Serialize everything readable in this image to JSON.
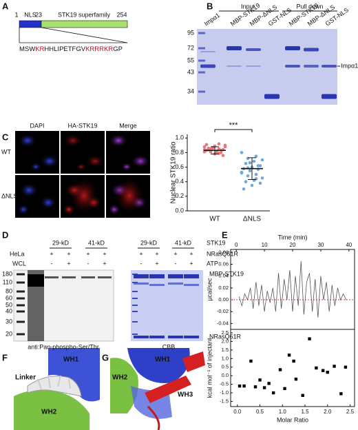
{
  "a": {
    "label": "A",
    "nls": "NLS",
    "domain": "STK19 superfamily",
    "positions": [
      1,
      23,
      254
    ],
    "sequence": [
      {
        "text": "MSW",
        "highlight": false
      },
      {
        "text": "KR",
        "highlight": true
      },
      {
        "text": "HHLIPETFGV",
        "highlight": false
      },
      {
        "text": "KRRRKR",
        "highlight": true
      },
      {
        "text": "GP",
        "highlight": false
      }
    ]
  },
  "b": {
    "label": "B",
    "groups": [
      "Input",
      "Pull down"
    ],
    "lanes": [
      "Impα1",
      "MBP-STK19",
      "MBP-ΔNLS",
      "GST-NLS",
      "MBP-STK19",
      "MBP-ΔNLS",
      "GST-NLS"
    ],
    "markers": [
      95,
      72,
      55,
      43,
      34
    ],
    "band_label": "Impα1"
  },
  "c": {
    "label": "C",
    "columns": [
      "DAPI",
      "HA-STK19",
      "Merge"
    ],
    "rows": [
      "WT",
      "ΔNLS"
    ],
    "chart": {
      "type": "scatter",
      "ylabel": "Nuclear STK19 ratio",
      "categories": [
        "WT",
        "ΔNLS"
      ],
      "colors": [
        "#e8777b",
        "#6fa8dc"
      ],
      "values": [
        [
          0.88,
          0.85,
          0.82,
          0.9,
          0.8,
          0.86,
          0.84,
          0.78,
          0.91,
          0.83,
          0.87,
          0.81,
          0.79,
          0.85,
          0.88,
          0.82,
          0.84,
          0.76,
          0.89,
          0.83,
          0.8,
          0.86,
          0.84,
          0.92,
          0.81
        ],
        [
          0.8,
          0.75,
          0.72,
          0.7,
          0.68,
          0.65,
          0.62,
          0.6,
          0.58,
          0.57,
          0.55,
          0.53,
          0.5,
          0.48,
          0.45,
          0.42,
          0.4,
          0.38,
          0.35,
          0.3,
          0.62,
          0.66,
          0.52,
          0.44,
          0.59
        ]
      ],
      "means": [
        0.83,
        0.58
      ],
      "errors": [
        0.05,
        0.15
      ],
      "ylim": [
        0,
        1.05
      ],
      "yticks": [
        {
          "value": 0,
          "label": "0.0"
        },
        0.2,
        0.4,
        0.6,
        0.8,
        {
          "value": 1,
          "label": "1.0"
        }
      ],
      "significance": "***"
    }
  },
  "d": {
    "label": "D",
    "sizes": [
      "29-kD",
      "41-kD",
      "29-kD",
      "41-kD"
    ],
    "protein": "STK19",
    "sample": [
      "HeLa",
      "WCL"
    ],
    "conditions": [
      {
        "name": "NRasQ61R",
        "signs": [
          "+",
          "+",
          "+",
          "+",
          "+",
          "+",
          "+",
          "+"
        ]
      },
      {
        "name": "ATP",
        "signs": [
          "-",
          "+",
          "-",
          "+",
          "-",
          "+",
          "-",
          "+"
        ]
      }
    ],
    "markers": [
      180,
      110,
      80,
      60,
      50,
      40,
      30,
      20
    ],
    "blot_label": "anti:Pan-phospho-Ser/Thr",
    "stain_label": "CBB",
    "bands": [
      "MBP-STK19",
      "NRasQ61R"
    ]
  },
  "e": {
    "label": "E",
    "top": {
      "type": "line",
      "xlabel": "Time (min)",
      "ylabel": "µcal/sec",
      "color": "#555555",
      "baseline_color": "#e03030",
      "x": [
        1,
        2,
        3,
        4,
        5,
        6,
        7,
        8,
        9,
        10,
        11,
        12,
        13,
        14,
        15,
        16,
        17,
        18,
        19,
        20,
        21,
        22,
        23,
        24,
        25,
        26,
        27,
        28,
        29,
        30,
        31,
        32,
        33,
        34,
        35,
        36,
        37,
        38,
        39
      ],
      "values": [
        0.005,
        -0.01,
        0.01,
        0,
        0.02,
        -0.015,
        0.03,
        -0.01,
        0.025,
        -0.02,
        0.015,
        -0.005,
        0.02,
        -0.02,
        0.045,
        -0.015,
        0.035,
        0,
        0.05,
        -0.02,
        0.04,
        -0.01,
        0.065,
        -0.025,
        0.03,
        0.045,
        -0.02,
        0.035,
        -0.03,
        0.04,
        0,
        0.03,
        -0.02,
        0.025,
        -0.01,
        0.02,
        0,
        0.01,
        0
      ],
      "xlim": [
        -2,
        42
      ],
      "ylim": [
        -0.05,
        0.085
      ],
      "xticks": [
        0,
        10,
        20,
        30,
        40
      ],
      "yticks": [
        -0.04,
        -0.02,
        {
          "value": 0,
          "label": "0.00"
        },
        0.02,
        0.04,
        0.06,
        0.08
      ]
    },
    "bottom": {
      "type": "scatter",
      "xlabel": "Molar Ratio",
      "ylabel": "kcal mol⁻¹ of injectant",
      "color": "#000000",
      "x": [
        0.05,
        0.15,
        0.3,
        0.4,
        0.5,
        0.6,
        0.7,
        0.8,
        0.95,
        1.05,
        1.15,
        1.25,
        1.3,
        1.45,
        1.6,
        1.75,
        1.9,
        2.0,
        2.15,
        2.3,
        2.4
      ],
      "values": [
        -0.6,
        -0.6,
        0.85,
        -0.65,
        -0.25,
        -0.7,
        -0.45,
        -1.0,
        0.35,
        -0.75,
        1.2,
        0.85,
        -0.2,
        -1.15,
        2.15,
        0.45,
        0.3,
        0.2,
        0.55,
        -1.05,
        0.5
      ],
      "xlim": [
        -0.15,
        2.6
      ],
      "ylim": [
        -1.8,
        2.7
      ],
      "xticks": [
        {
          "value": 0,
          "label": "0.0"
        },
        0.5,
        {
          "value": 1,
          "label": "1.0"
        },
        1.5,
        {
          "value": 2,
          "label": "2.0"
        },
        2.5
      ],
      "yticks": [
        -1.5,
        {
          "value": -1,
          "label": "-1.0"
        },
        -0.5,
        {
          "value": 0,
          "label": "0.0"
        },
        0.5,
        {
          "value": 1,
          "label": "1.0"
        },
        1.5,
        {
          "value": 2,
          "label": "2.0"
        },
        2.5
      ]
    }
  },
  "f": {
    "label": "F",
    "regions": [
      "Linker",
      "WH1",
      "WH2"
    ]
  },
  "g": {
    "label": "G",
    "regions": [
      "WH1",
      "WH2",
      "WH3"
    ]
  }
}
